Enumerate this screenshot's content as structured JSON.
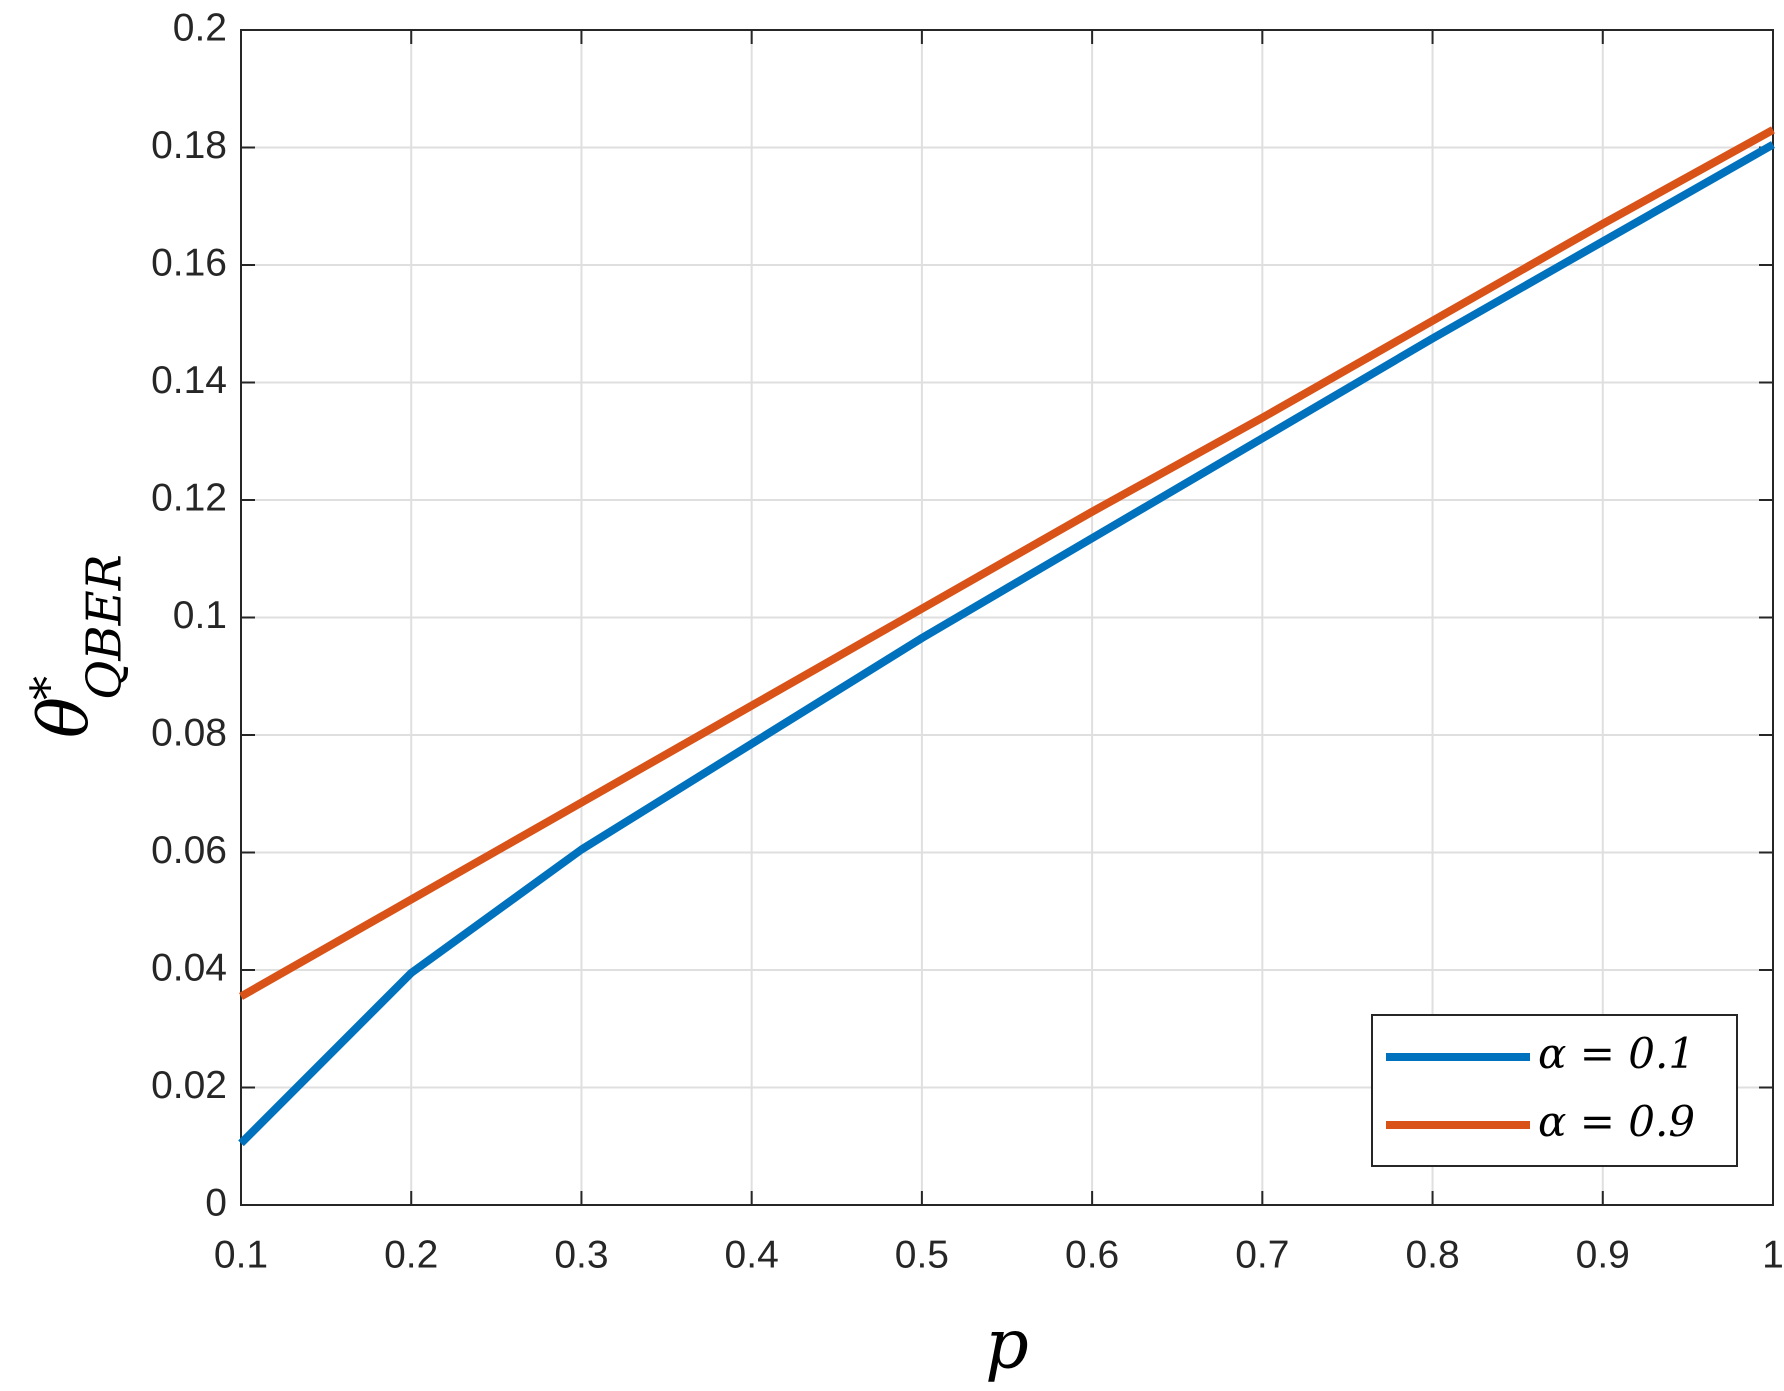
{
  "chart_data": {
    "type": "line",
    "xlabel": "p",
    "ylabel": {
      "base": "θ",
      "sup": "*",
      "sub": "QBER"
    },
    "x": [
      0.1,
      0.2,
      0.3,
      0.4,
      0.5,
      0.6,
      0.7,
      0.8,
      0.9,
      1
    ],
    "series": [
      {
        "name": "α = 0.1",
        "color": "#0072bd",
        "values": [
          0.0105,
          0.0395,
          0.0605,
          0.0785,
          0.0965,
          0.1135,
          0.1305,
          0.1475,
          0.164,
          0.1805
        ]
      },
      {
        "name": "α = 0.9",
        "color": "#d95319",
        "values": [
          0.0355,
          0.052,
          0.0685,
          0.085,
          0.1015,
          0.118,
          0.134,
          0.1505,
          0.167,
          0.183
        ]
      }
    ],
    "xlim": [
      0.1,
      1
    ],
    "xticks": [
      0.1,
      0.2,
      0.3,
      0.4,
      0.5,
      0.6,
      0.7,
      0.8,
      0.9,
      1
    ],
    "ylim": [
      0,
      0.2
    ],
    "yticks": [
      0,
      0.02,
      0.04,
      0.06,
      0.08,
      0.1,
      0.12,
      0.14,
      0.16,
      0.18,
      0.2
    ],
    "grid": true,
    "legend": "lower right"
  }
}
